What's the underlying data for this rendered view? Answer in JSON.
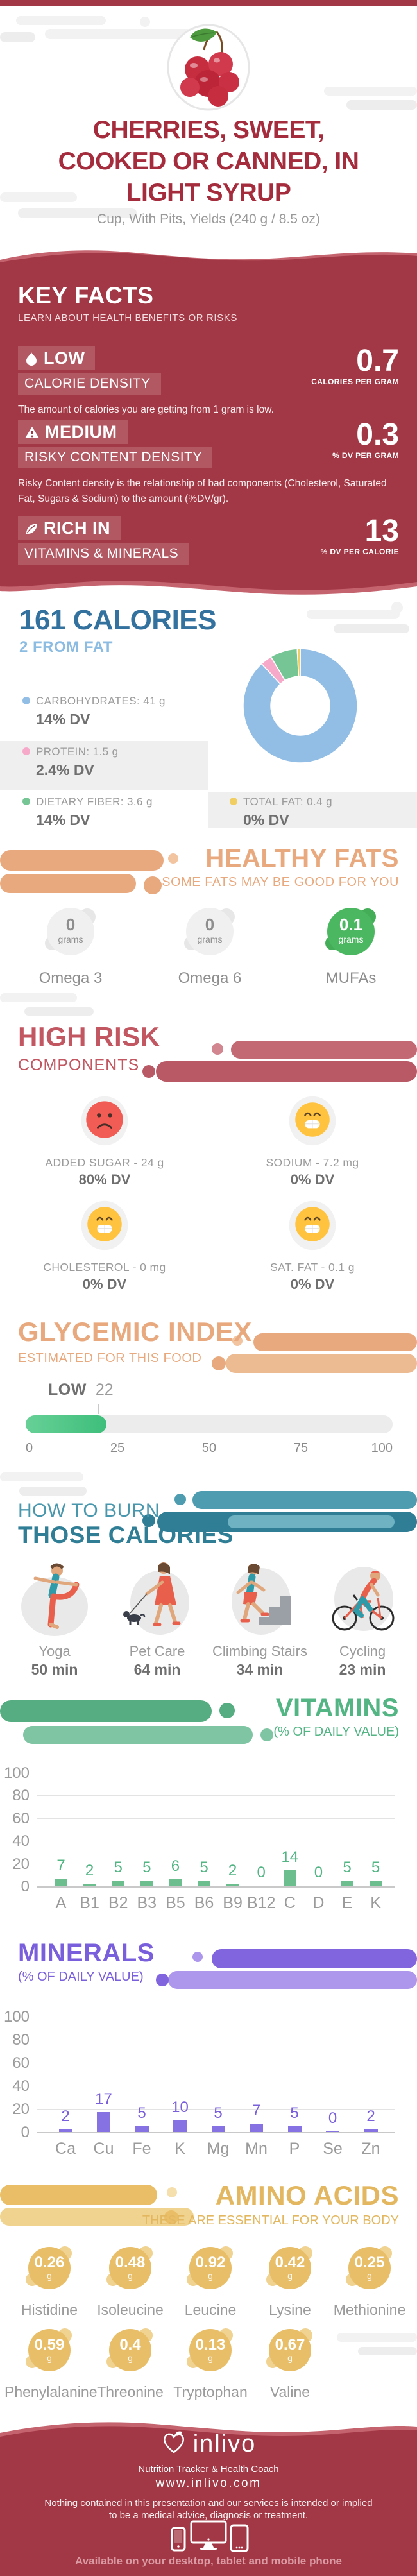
{
  "header": {
    "title": "CHERRIES, SWEET, COOKED OR CANNED, IN LIGHT SYRUP",
    "subtitle": "Cup, With Pits, Yields (240 g / 8.5 oz)"
  },
  "key_facts": {
    "heading": "KEY FACTS",
    "subheading": "LEARN ABOUT HEALTH BENEFITS OR RISKS",
    "rows": [
      {
        "icon": "flame",
        "badge": "LOW",
        "label": "CALORIE DENSITY",
        "value": "0.7",
        "unit": "CALORIES PER GRAM",
        "desc": "The amount of calories you are getting from 1 gram is low."
      },
      {
        "icon": "warning",
        "badge": "MEDIUM",
        "label": "RISKY CONTENT DENSITY",
        "value": "0.3",
        "unit": "% DV PER GRAM",
        "desc": "Risky Content density is the relationship of bad components (Cholesterol, Saturated Fat, Sugars & Sodium) to the amount (%DV/gr)."
      },
      {
        "icon": "leaf",
        "badge": "RICH IN",
        "label": "VITAMINS & MINERALS",
        "value": "13",
        "unit": "% DV PER CALORIE",
        "desc": ""
      }
    ]
  },
  "calories": {
    "title": "161 CALORIES",
    "subtitle": "2 FROM FAT",
    "legend": [
      {
        "label": "CARBOHYDRATES: 41 g",
        "dv": "14% DV"
      },
      {
        "label": "PROTEIN: 1.5 g",
        "dv": "2.4% DV"
      },
      {
        "label": "DIETARY FIBER: 3.6 g",
        "dv": "14% DV"
      },
      {
        "label": "TOTAL FAT: 0.4 g",
        "dv": "0% DV"
      }
    ]
  },
  "healthy_fats": {
    "title": "HEALTHY FATS",
    "subtitle": "SOME FATS MAY BE GOOD FOR YOU",
    "items": [
      {
        "value": "0",
        "unit": "grams",
        "label": "Omega 3",
        "highlight": false
      },
      {
        "value": "0",
        "unit": "grams",
        "label": "Omega 6",
        "highlight": false
      },
      {
        "value": "0.1",
        "unit": "grams",
        "label": "MUFAs",
        "highlight": true
      }
    ]
  },
  "high_risk": {
    "title": "HIGH RISK",
    "subtitle": "COMPONENTS",
    "items": [
      {
        "label": "ADDED SUGAR - 24 g",
        "dv": "80% DV",
        "mood": "sad"
      },
      {
        "label": "SODIUM - 7.2 mg",
        "dv": "0% DV",
        "mood": "happy"
      },
      {
        "label": "CHOLESTEROL - 0 mg",
        "dv": "0% DV",
        "mood": "happy"
      },
      {
        "label": "SAT. FAT - 0.1 g",
        "dv": "0% DV",
        "mood": "happy"
      }
    ]
  },
  "burn": {
    "title_line1": "HOW TO BURN",
    "title_line2": "THOSE CALORIES",
    "activities": [
      {
        "label": "Yoga",
        "time": "50 min",
        "icon": "yoga"
      },
      {
        "label": "Pet Care",
        "time": "64 min",
        "icon": "petcare"
      },
      {
        "label": "Climbing Stairs",
        "time": "34 min",
        "icon": "stairs"
      },
      {
        "label": "Cycling",
        "time": "23 min",
        "icon": "cycling"
      }
    ]
  },
  "amino_acids": {
    "title": "AMINO ACIDS",
    "subtitle": "THESE ARE ESSENTIAL FOR YOUR BODY",
    "items": [
      {
        "value": "0.26",
        "unit": "g",
        "label": "Histidine"
      },
      {
        "value": "0.48",
        "unit": "g",
        "label": "Isoleucine"
      },
      {
        "value": "0.92",
        "unit": "g",
        "label": "Leucine"
      },
      {
        "value": "0.42",
        "unit": "g",
        "label": "Lysine"
      },
      {
        "value": "0.25",
        "unit": "g",
        "label": "Methionine"
      },
      {
        "value": "0.59",
        "unit": "g",
        "label": "Phenylalanine"
      },
      {
        "value": "0.4",
        "unit": "g",
        "label": "Threonine"
      },
      {
        "value": "0.13",
        "unit": "g",
        "label": "Tryptophan"
      },
      {
        "value": "0.67",
        "unit": "g",
        "label": "Valine"
      }
    ]
  },
  "footer": {
    "brand": "inlivo",
    "tagline": "Nutrition Tracker & Health Coach",
    "url": "www.inlivo.com",
    "disclaimer": "Nothing contained in this presentation and our services is intended or implied to be a medical advice, diagnosis or treatment.",
    "availability": "Available on your desktop, tablet and mobile phone"
  },
  "chart_data": [
    {
      "type": "pie",
      "donut": true,
      "title": "161 CALORIES",
      "subtitle": "2 FROM FAT",
      "labels": [
        "Carbohydrates",
        "Protein",
        "Dietary Fiber",
        "Total Fat"
      ],
      "values_g": [
        41,
        1.5,
        3.6,
        0.4
      ],
      "dv_percent": [
        "14% DV",
        "2.4% DV",
        "14% DV",
        "0% DV"
      ],
      "colors": [
        "#92BEE5",
        "#F7A9C9",
        "#76C594",
        "#F1CE61"
      ],
      "legend_position": "left"
    },
    {
      "type": "bar",
      "title": "VITAMINS",
      "subtitle": "(% OF DAILY VALUE)",
      "categories": [
        "A",
        "B1",
        "B2",
        "B3",
        "B5",
        "B6",
        "B9",
        "B12",
        "C",
        "D",
        "E",
        "K"
      ],
      "values": [
        7,
        2,
        5,
        5,
        6,
        5,
        2,
        0,
        14,
        0,
        5,
        5
      ],
      "ylim": [
        0,
        100
      ],
      "yticks": [
        0,
        20,
        40,
        60,
        80,
        100
      ],
      "grid": true,
      "bar_color": "#6CBE8F",
      "label_color": "#53B584"
    },
    {
      "type": "bar",
      "title": "MINERALS",
      "subtitle": "(% OF DAILY VALUE)",
      "categories": [
        "Ca",
        "Cu",
        "Fe",
        "K",
        "Mg",
        "Mn",
        "P",
        "Se",
        "Zn"
      ],
      "values": [
        2,
        17,
        5,
        10,
        5,
        7,
        5,
        0,
        2
      ],
      "ylim": [
        0,
        100
      ],
      "yticks": [
        0,
        20,
        40,
        60,
        80,
        100
      ],
      "grid": true,
      "bar_color": "#8672E2",
      "label_color": "#7A5FDC"
    },
    {
      "type": "gauge",
      "title": "GLYCEMIC INDEX",
      "subtitle": "ESTIMATED FOR THIS FOOD",
      "label": "LOW",
      "value": 22,
      "range": [
        0,
        100
      ],
      "scale_ticks": [
        0,
        25,
        50,
        75,
        100
      ],
      "bar_color": "#4FC487"
    }
  ]
}
